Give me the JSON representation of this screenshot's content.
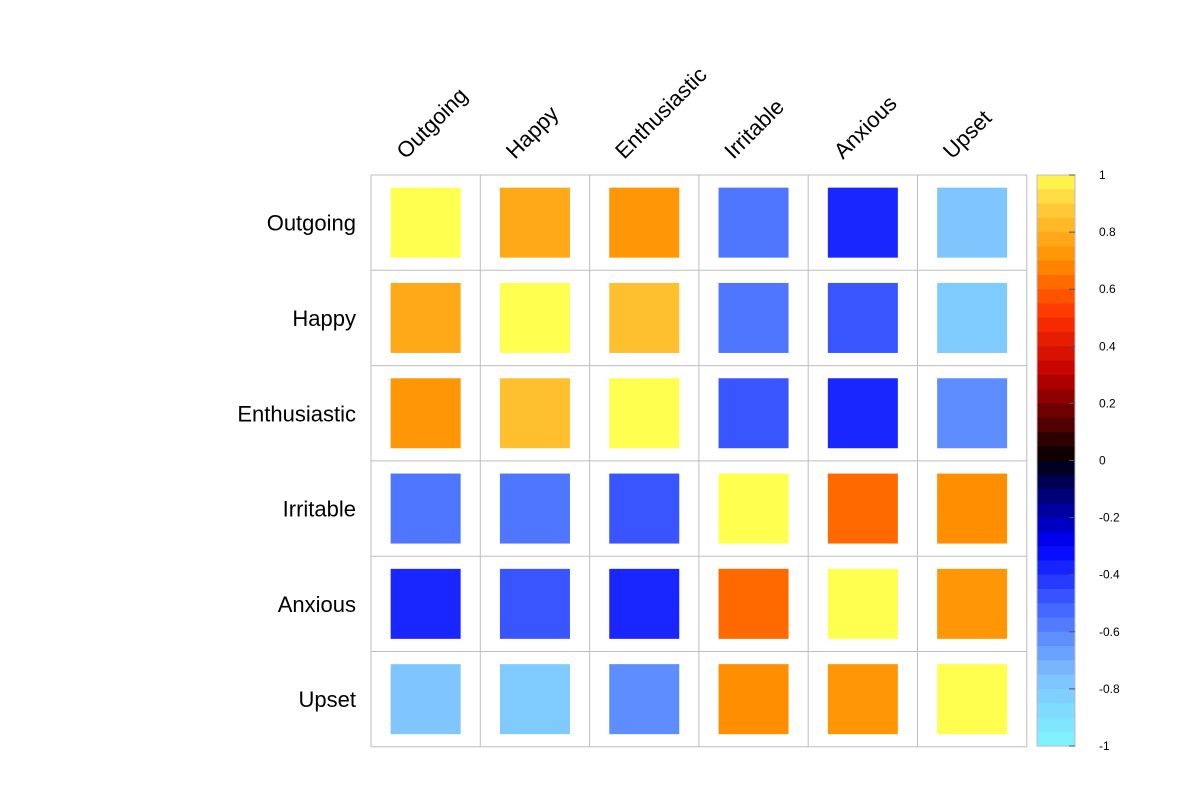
{
  "chart_data": {
    "type": "heatmap",
    "title": "",
    "variables": [
      "Outgoing",
      "Happy",
      "Enthusiastic",
      "Irritable",
      "Anxious",
      "Upset"
    ],
    "matrix": [
      [
        1.0,
        0.78,
        0.72,
        -0.56,
        -0.38,
        -0.78
      ],
      [
        0.78,
        1.0,
        0.85,
        -0.56,
        -0.48,
        -0.8
      ],
      [
        0.72,
        0.85,
        1.0,
        -0.48,
        -0.38,
        -0.62
      ],
      [
        -0.56,
        -0.56,
        -0.48,
        1.0,
        0.62,
        0.7
      ],
      [
        -0.38,
        -0.48,
        -0.38,
        0.62,
        1.0,
        0.72
      ],
      [
        -0.78,
        -0.8,
        -0.62,
        0.7,
        0.72,
        1.0
      ]
    ],
    "colorbar": {
      "range": [
        -1,
        1
      ],
      "ticks": [
        "1",
        "0.8",
        "0.6",
        "0.4",
        "0.2",
        "0",
        "-0.2",
        "-0.4",
        "-0.6",
        "-0.8",
        "-1"
      ],
      "tick_values": [
        1,
        0.8,
        0.6,
        0.4,
        0.2,
        0,
        -0.2,
        -0.4,
        -0.6,
        -0.8,
        -1
      ],
      "gradient_stops": [
        {
          "value": -1.0,
          "color": "#7ff7ff"
        },
        {
          "value": -0.75,
          "color": "#7fbfff"
        },
        {
          "value": -0.5,
          "color": "#3f5fff"
        },
        {
          "value": -0.3,
          "color": "#0000ff"
        },
        {
          "value": -0.05,
          "color": "#00003f"
        },
        {
          "value": 0.0,
          "color": "#000000"
        },
        {
          "value": 0.1,
          "color": "#3f0000"
        },
        {
          "value": 0.3,
          "color": "#bf0000"
        },
        {
          "value": 0.5,
          "color": "#ff2f00"
        },
        {
          "value": 0.7,
          "color": "#ff8f00"
        },
        {
          "value": 0.9,
          "color": "#ffd03f"
        },
        {
          "value": 1.0,
          "color": "#ffff4f"
        }
      ]
    }
  }
}
